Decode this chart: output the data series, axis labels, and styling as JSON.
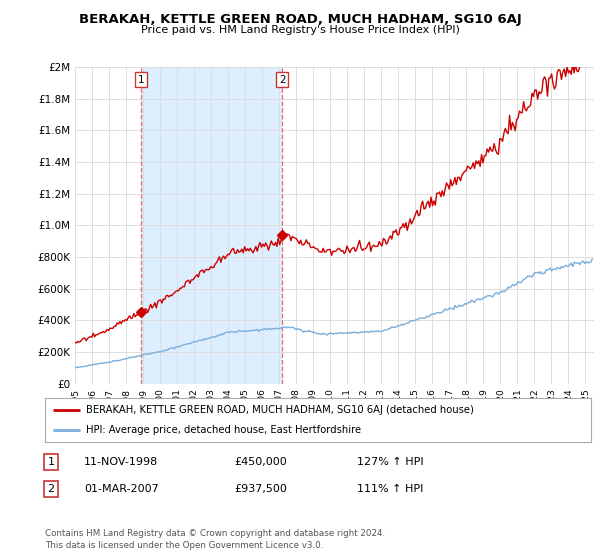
{
  "title": "BERAKAH, KETTLE GREEN ROAD, MUCH HADHAM, SG10 6AJ",
  "subtitle": "Price paid vs. HM Land Registry's House Price Index (HPI)",
  "legend_line1": "BERAKAH, KETTLE GREEN ROAD, MUCH HADHAM, SG10 6AJ (detached house)",
  "legend_line2": "HPI: Average price, detached house, East Hertfordshire",
  "table_rows": [
    {
      "num": "1",
      "date": "11-NOV-1998",
      "price": "£450,000",
      "hpi": "127% ↑ HPI"
    },
    {
      "num": "2",
      "date": "01-MAR-2007",
      "price": "£937,500",
      "hpi": "111% ↑ HPI"
    }
  ],
  "footnote": "Contains HM Land Registry data © Crown copyright and database right 2024.\nThis data is licensed under the Open Government Licence v3.0.",
  "property_color": "#cc0000",
  "hpi_color": "#7aaedb",
  "marker1_x": 1998.87,
  "marker1_y": 450000,
  "marker2_x": 2007.17,
  "marker2_y": 937500,
  "ylim": [
    0,
    2000000
  ],
  "xlim_start": 1995.0,
  "xlim_end": 2025.5,
  "yticks": [
    0,
    200000,
    400000,
    600000,
    800000,
    1000000,
    1200000,
    1400000,
    1600000,
    1800000,
    2000000
  ],
  "grid_color": "#dddddd",
  "bg_color": "#ffffff",
  "shade_color": "#ddeeff",
  "vline1_x": 1998.87,
  "vline2_x": 2007.17
}
